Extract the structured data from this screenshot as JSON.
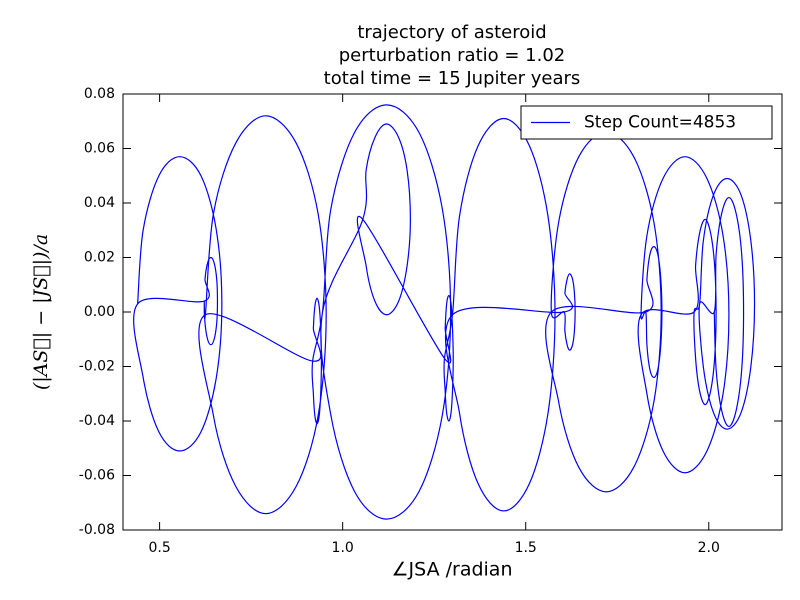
{
  "chart_data": {
    "type": "line",
    "title": [
      "trajectory of asteroid",
      "perturbation ratio = 1.02",
      "total time = 15 Jupiter years"
    ],
    "x_label": "∠JSA /radian",
    "y_label": "(|AS⃗| − |JS⃗|)/a",
    "xlim": [
      0.4,
      2.2
    ],
    "ylim": [
      -0.08,
      0.08
    ],
    "xticks": [
      0.5,
      {
        "value": 1.0,
        "label": "1.0"
      },
      1.5,
      {
        "value": 2.0,
        "label": "2.0"
      }
    ],
    "yticks": [
      -0.08,
      -0.06,
      -0.04,
      -0.02,
      {
        "value": 0,
        "label": "0.00"
      },
      0.02,
      0.04,
      0.06,
      0.08
    ],
    "grid": false,
    "legend": "upper right",
    "x": [
      0.44,
      0.455,
      0.498,
      0.555,
      0.613,
      0.655,
      0.67,
      0.655,
      0.613,
      0.555,
      0.498,
      0.455,
      0.44,
      0.622,
      0.624,
      0.631,
      0.64,
      0.649,
      0.656,
      0.658,
      0.656,
      0.649,
      0.64,
      0.631,
      0.624,
      0.622,
      0.625,
      0.647,
      0.708,
      0.79,
      0.873,
      0.933,
      0.955,
      0.933,
      0.873,
      0.79,
      0.708,
      0.647,
      0.625,
      0.918,
      0.92,
      0.924,
      0.93,
      0.936,
      0.94,
      0.942,
      0.94,
      0.936,
      0.93,
      0.924,
      0.92,
      0.918,
      0.945,
      0.968,
      1.033,
      1.12,
      1.208,
      1.272,
      1.295,
      1.272,
      1.208,
      1.12,
      1.033,
      0.968,
      0.945,
      1.055,
      1.064,
      1.088,
      1.12,
      1.153,
      1.176,
      1.185,
      1.176,
      1.153,
      1.12,
      1.088,
      1.064,
      1.055,
      1.278,
      1.28,
      1.284,
      1.29,
      1.296,
      1.3,
      1.302,
      1.3,
      1.296,
      1.29,
      1.284,
      1.28,
      1.278,
      1.3,
      1.319,
      1.37,
      1.44,
      1.51,
      1.561,
      1.58,
      1.561,
      1.51,
      1.44,
      1.37,
      1.319,
      1.3,
      1.605,
      1.607,
      1.613,
      1.62,
      1.628,
      1.633,
      1.635,
      1.633,
      1.628,
      1.62,
      1.613,
      1.607,
      1.605,
      1.57,
      1.59,
      1.645,
      1.72,
      1.795,
      1.85,
      1.87,
      1.85,
      1.795,
      1.72,
      1.645,
      1.59,
      1.57,
      1.828,
      1.831,
      1.839,
      1.85,
      1.861,
      1.869,
      1.872,
      1.869,
      1.861,
      1.85,
      1.839,
      1.831,
      1.828,
      1.815,
      1.831,
      1.875,
      1.935,
      1.995,
      2.039,
      2.055,
      2.039,
      1.995,
      1.935,
      1.875,
      1.831,
      1.815,
      1.96,
      1.964,
      1.975,
      1.99,
      2.005,
      2.016,
      2.02,
      2.016,
      2.005,
      1.99,
      1.975,
      1.964,
      1.96,
      1.975,
      1.985,
      2.013,
      2.05,
      2.088,
      2.115,
      2.125,
      2.115,
      2.088,
      2.05,
      2.013,
      1.985,
      1.975,
      2.015,
      2.02,
      2.035,
      2.055,
      2.075,
      2.09,
      2.095,
      2.09,
      2.075,
      2.055,
      2.035,
      2.02,
      2.015
    ],
    "series": [
      {
        "name": "Step Count=4853",
        "color": "#0000ff",
        "values": [
          0.003,
          0.03,
          0.05,
          0.057,
          0.05,
          0.03,
          0.003,
          -0.024,
          -0.044,
          -0.051,
          -0.044,
          -0.024,
          0.003,
          0.004,
          0.012,
          0.018,
          0.02,
          0.018,
          0.012,
          0.004,
          -0.004,
          -0.01,
          -0.012,
          -0.01,
          -0.004,
          0.004,
          -0.001,
          0.036,
          0.062,
          0.072,
          0.062,
          0.036,
          -0.001,
          -0.038,
          -0.064,
          -0.074,
          -0.064,
          -0.038,
          -0.001,
          -0.018,
          -0.006,
          0.002,
          0.005,
          0.002,
          -0.006,
          -0.018,
          -0.03,
          -0.038,
          -0.041,
          -0.038,
          -0.03,
          -0.018,
          0,
          0.038,
          0.066,
          0.076,
          0.066,
          0.038,
          0,
          -0.038,
          -0.066,
          -0.076,
          -0.066,
          -0.038,
          0,
          0.034,
          0.052,
          0.064,
          0.069,
          0.064,
          0.052,
          0.034,
          0.017,
          0.004,
          -0.001,
          0.004,
          0.017,
          0.034,
          -0.017,
          -0.006,
          0.003,
          0.006,
          0.003,
          -0.006,
          -0.017,
          -0.029,
          -0.037,
          -0.04,
          -0.037,
          -0.029,
          -0.017,
          -0.001,
          0.035,
          0.061,
          0.071,
          0.061,
          0.035,
          -0.001,
          -0.037,
          -0.063,
          -0.073,
          -0.063,
          -0.037,
          -0.001,
          0,
          0.007,
          0.012,
          0.014,
          0.012,
          0.007,
          0,
          -0.007,
          -0.012,
          -0.014,
          -0.012,
          -0.007,
          0,
          0,
          0.033,
          0.057,
          0.066,
          0.057,
          0.033,
          0,
          -0.033,
          -0.057,
          -0.066,
          -0.057,
          -0.033,
          0,
          0,
          0.012,
          0.021,
          0.024,
          0.021,
          0.012,
          0,
          -0.012,
          -0.021,
          -0.024,
          -0.021,
          -0.012,
          0,
          -0.001,
          0.028,
          0.049,
          0.057,
          0.049,
          0.028,
          -0.001,
          -0.03,
          -0.051,
          -0.059,
          -0.051,
          -0.03,
          -0.001,
          0,
          0.017,
          0.029,
          0.034,
          0.029,
          0.017,
          0,
          -0.017,
          -0.029,
          -0.034,
          -0.029,
          -0.017,
          0,
          0.003,
          0.026,
          0.043,
          0.049,
          0.043,
          0.026,
          0.003,
          -0.02,
          -0.037,
          -0.043,
          -0.037,
          -0.02,
          0.003,
          0,
          0.021,
          0.036,
          0.042,
          0.036,
          0.021,
          0,
          -0.021,
          -0.036,
          -0.042,
          -0.036,
          -0.021,
          0
        ]
      }
    ]
  }
}
